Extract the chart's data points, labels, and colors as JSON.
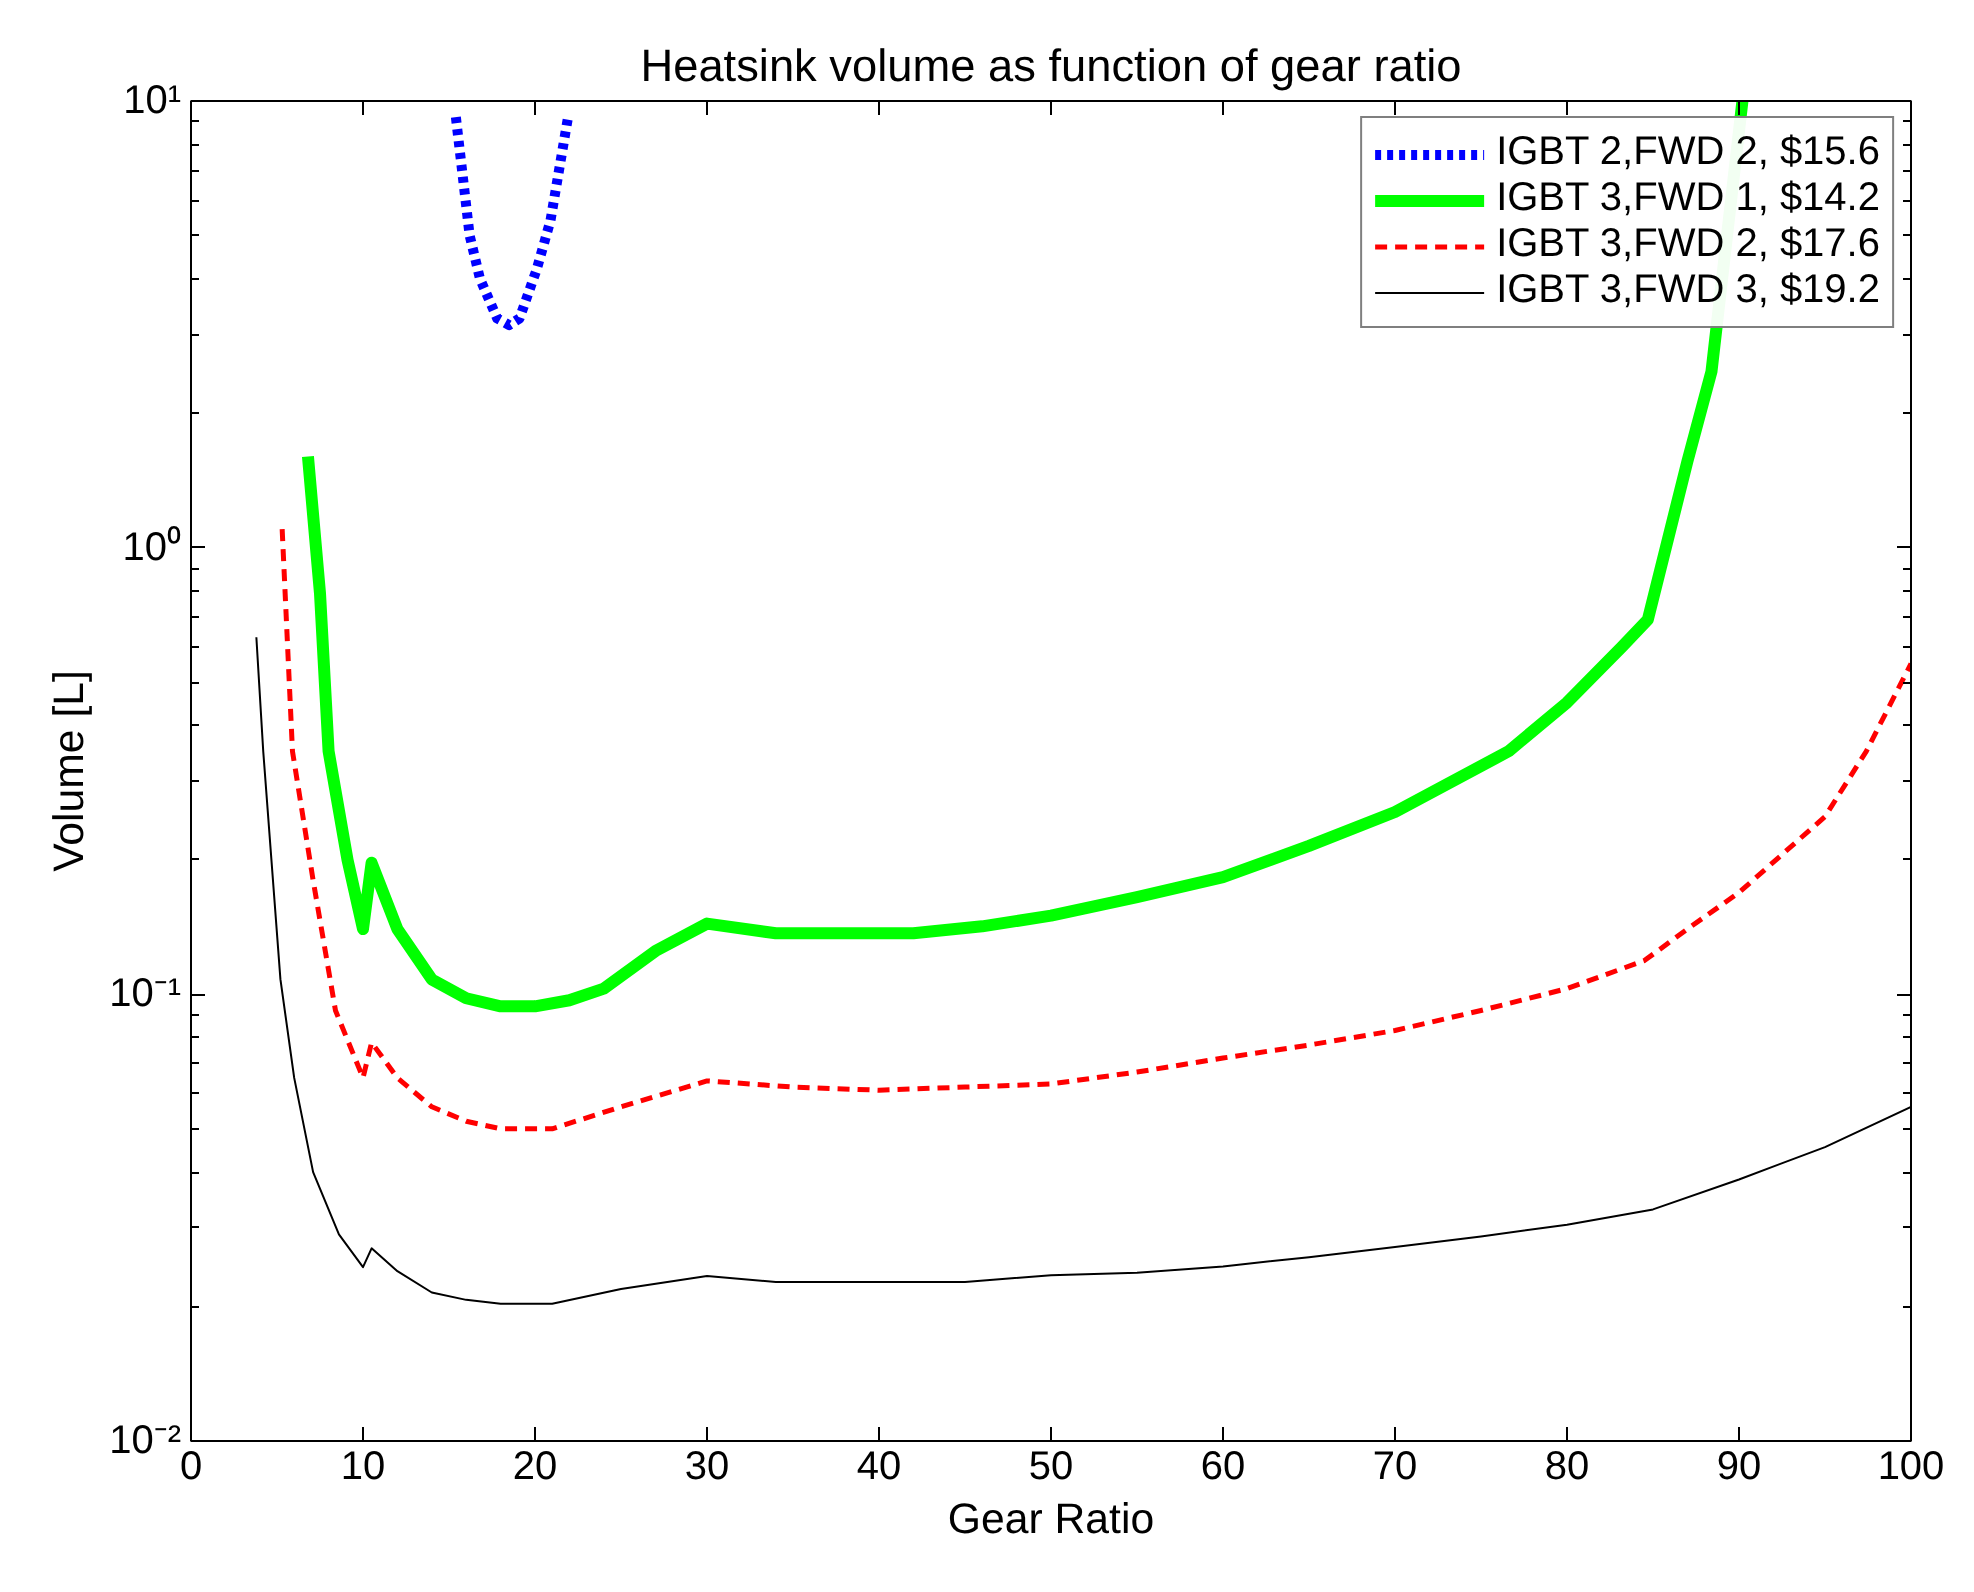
{
  "chart_data": {
    "type": "line",
    "title": "Heatsink volume as function of gear ratio",
    "xlabel": "Gear Ratio",
    "ylabel": "Volume [L]",
    "log": "y",
    "xlim": [
      0,
      100
    ],
    "xticks": [
      0,
      10,
      20,
      30,
      40,
      50,
      60,
      70,
      80,
      90,
      100
    ],
    "ylim": [
      0.01,
      10
    ],
    "yticks": [
      {
        "value": 0.01,
        "label": "10⁻²"
      },
      {
        "value": 0.1,
        "label": "10⁻¹"
      },
      {
        "value": 1,
        "label": "10⁰"
      },
      {
        "value": 10,
        "label": "10¹"
      }
    ],
    "grid": false,
    "legend": "top right",
    "series": [
      {
        "name": "IGBT 2,FWD 2, $15.6",
        "color": "#0000ff",
        "line_style": "dotted",
        "x": [
          15.4,
          16.2,
          16.8,
          17.8,
          18.5,
          19.1,
          20.1,
          20.9,
          21.9
        ],
        "values": [
          9.2,
          5.0,
          4.0,
          3.26,
          3.15,
          3.26,
          4.2,
          5.4,
          9.1
        ]
      },
      {
        "name": "IGBT 3,FWD 1, $14.2",
        "color": "#00ff00",
        "line_style": "solid",
        "x": [
          6.8,
          7.5,
          8,
          9.1,
          10,
          10.5,
          12,
          14,
          16,
          18,
          20,
          22,
          24,
          27,
          30,
          34,
          38,
          42,
          46,
          50,
          55,
          60,
          65,
          70,
          76.6,
          80,
          83.2,
          84.7,
          87,
          88.4,
          90.2
        ],
        "values": [
          1.6,
          0.79,
          0.35,
          0.2,
          0.14,
          0.197,
          0.14,
          0.108,
          0.098,
          0.094,
          0.094,
          0.097,
          0.103,
          0.125,
          0.144,
          0.137,
          0.137,
          0.137,
          0.142,
          0.15,
          0.165,
          0.183,
          0.215,
          0.256,
          0.35,
          0.45,
          0.6,
          0.69,
          1.56,
          2.48,
          10
        ]
      },
      {
        "name": "IGBT 3,FWD 2, $17.6",
        "color": "#ff0000",
        "line_style": "dashed",
        "x": [
          5.3,
          5.9,
          7.1,
          8.4,
          10,
          10.5,
          12,
          14,
          16,
          18,
          21,
          25,
          30,
          35,
          40,
          45,
          50,
          55,
          60,
          65,
          70,
          75,
          80,
          84.5,
          87,
          90,
          95,
          97.4,
          100
        ],
        "values": [
          1.1,
          0.35,
          0.18,
          0.092,
          0.065,
          0.078,
          0.065,
          0.056,
          0.052,
          0.05,
          0.05,
          0.056,
          0.064,
          0.062,
          0.061,
          0.062,
          0.063,
          0.067,
          0.072,
          0.077,
          0.083,
          0.092,
          0.103,
          0.119,
          0.14,
          0.169,
          0.25,
          0.35,
          0.55
        ]
      },
      {
        "name": "IGBT 3,FWD 3, $19.2",
        "color": "#000000",
        "line_style": "solid",
        "x": [
          3.8,
          4.2,
          5.2,
          6,
          7.1,
          8.6,
          10,
          10.5,
          12,
          14,
          16,
          18,
          21,
          25,
          30,
          34,
          40,
          45,
          50,
          55,
          60,
          65,
          70,
          75,
          80,
          85,
          90,
          95,
          100
        ],
        "values": [
          0.63,
          0.35,
          0.108,
          0.065,
          0.04,
          0.029,
          0.0245,
          0.027,
          0.024,
          0.0215,
          0.0207,
          0.0203,
          0.0203,
          0.0219,
          0.0234,
          0.0227,
          0.0227,
          0.0227,
          0.0235,
          0.0238,
          0.0246,
          0.0258,
          0.0272,
          0.0287,
          0.0305,
          0.033,
          0.0385,
          0.0455,
          0.056
        ]
      }
    ]
  }
}
